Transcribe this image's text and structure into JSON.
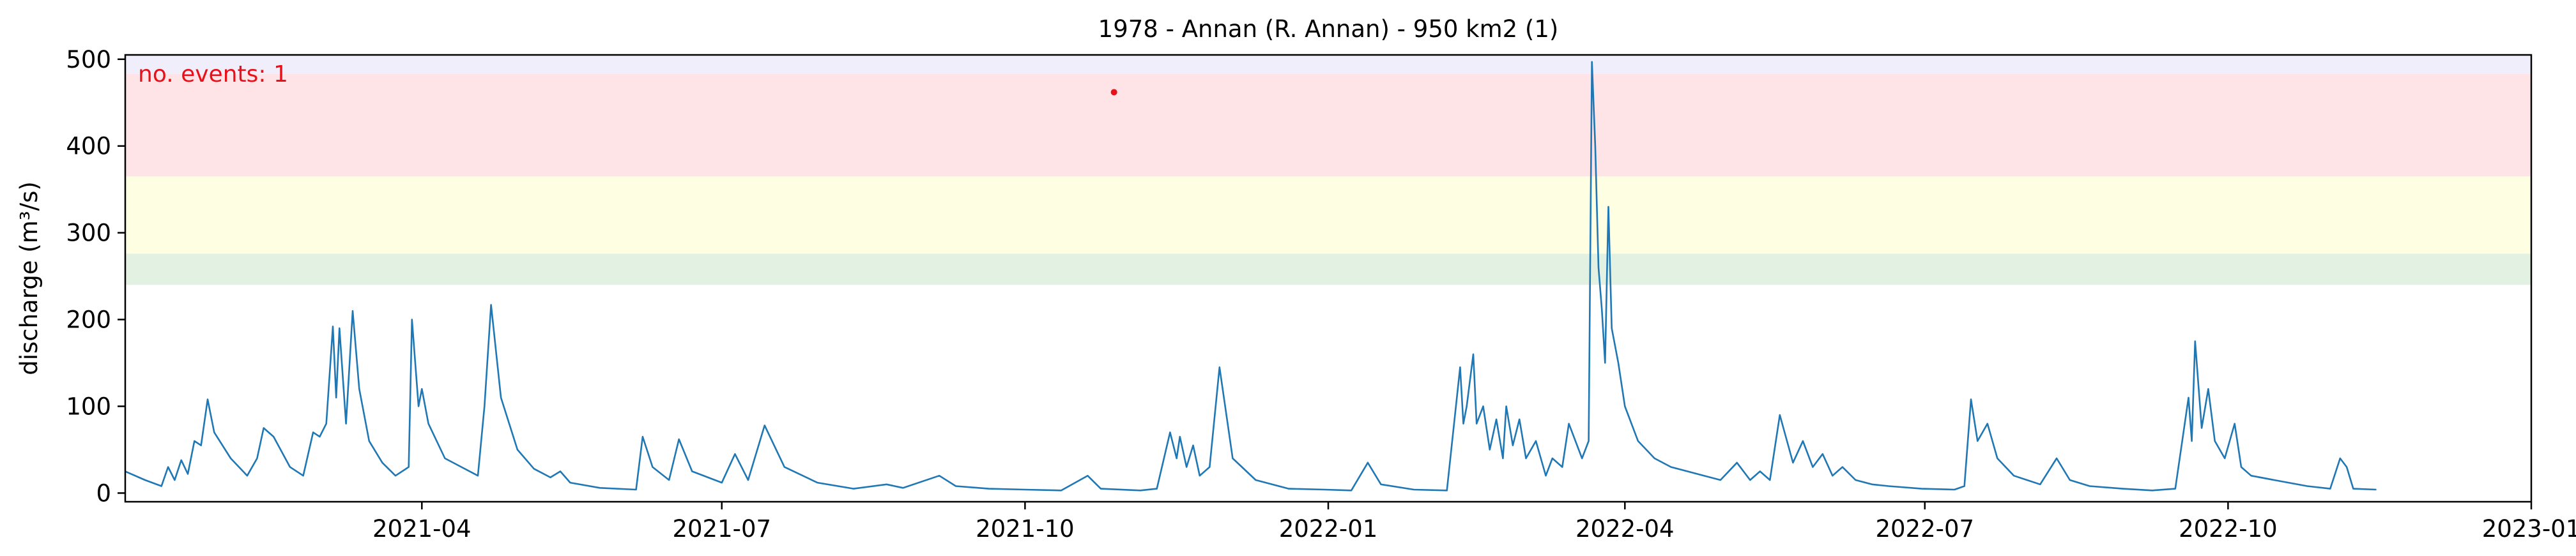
{
  "chart_data": {
    "type": "line",
    "title": "1978 - Annan (R. Annan) - 950 km2 (1)",
    "xlabel": "",
    "ylabel": "discharge (m³/s)",
    "xlim": [
      "2021-01-01",
      "2023-01-01"
    ],
    "ylim": [
      -10,
      505
    ],
    "x_ticks": [
      "2021-04",
      "2021-07",
      "2021-10",
      "2022-01",
      "2022-04",
      "2022-07",
      "2022-10",
      "2023-01"
    ],
    "y_ticks": [
      0,
      100,
      200,
      300,
      400,
      500
    ],
    "grid": false,
    "threshold_bands": [
      {
        "from": 240,
        "to": 276,
        "color": "#e3f1e3"
      },
      {
        "from": 276,
        "to": 365,
        "color": "#fefee2"
      },
      {
        "from": 365,
        "to": 483,
        "color": "#fee3e7"
      },
      {
        "from": 483,
        "to": 505,
        "color": "#f0eefa"
      }
    ],
    "annotation": "no. events: 1",
    "series": [
      {
        "color": "#1f77b4",
        "points": [
          [
            "2021-01-01",
            25
          ],
          [
            "2021-01-07",
            15
          ],
          [
            "2021-01-12",
            8
          ],
          [
            "2021-01-14",
            30
          ],
          [
            "2021-01-16",
            15
          ],
          [
            "2021-01-18",
            38
          ],
          [
            "2021-01-20",
            22
          ],
          [
            "2021-01-22",
            60
          ],
          [
            "2021-01-24",
            55
          ],
          [
            "2021-01-26",
            108
          ],
          [
            "2021-01-28",
            70
          ],
          [
            "2021-02-02",
            40
          ],
          [
            "2021-02-07",
            20
          ],
          [
            "2021-02-10",
            40
          ],
          [
            "2021-02-12",
            75
          ],
          [
            "2021-02-15",
            65
          ],
          [
            "2021-02-20",
            30
          ],
          [
            "2021-02-24",
            20
          ],
          [
            "2021-02-27",
            70
          ],
          [
            "2021-03-01",
            65
          ],
          [
            "2021-03-03",
            80
          ],
          [
            "2021-03-05",
            192
          ],
          [
            "2021-03-06",
            110
          ],
          [
            "2021-03-07",
            190
          ],
          [
            "2021-03-09",
            80
          ],
          [
            "2021-03-11",
            210
          ],
          [
            "2021-03-13",
            120
          ],
          [
            "2021-03-16",
            60
          ],
          [
            "2021-03-20",
            35
          ],
          [
            "2021-03-24",
            20
          ],
          [
            "2021-03-28",
            30
          ],
          [
            "2021-03-29",
            200
          ],
          [
            "2021-03-31",
            100
          ],
          [
            "2021-04-01",
            120
          ],
          [
            "2021-04-03",
            80
          ],
          [
            "2021-04-08",
            40
          ],
          [
            "2021-04-13",
            30
          ],
          [
            "2021-04-18",
            20
          ],
          [
            "2021-04-20",
            100
          ],
          [
            "2021-04-22",
            217
          ],
          [
            "2021-04-25",
            110
          ],
          [
            "2021-04-30",
            50
          ],
          [
            "2021-05-05",
            28
          ],
          [
            "2021-05-10",
            18
          ],
          [
            "2021-05-13",
            25
          ],
          [
            "2021-05-16",
            12
          ],
          [
            "2021-05-25",
            6
          ],
          [
            "2021-06-05",
            4
          ],
          [
            "2021-06-07",
            65
          ],
          [
            "2021-06-10",
            30
          ],
          [
            "2021-06-15",
            15
          ],
          [
            "2021-06-18",
            62
          ],
          [
            "2021-06-22",
            25
          ],
          [
            "2021-07-01",
            12
          ],
          [
            "2021-07-05",
            45
          ],
          [
            "2021-07-09",
            15
          ],
          [
            "2021-07-14",
            78
          ],
          [
            "2021-07-20",
            30
          ],
          [
            "2021-07-30",
            12
          ],
          [
            "2021-08-10",
            5
          ],
          [
            "2021-08-20",
            10
          ],
          [
            "2021-08-25",
            6
          ],
          [
            "2021-09-05",
            20
          ],
          [
            "2021-09-10",
            8
          ],
          [
            "2021-09-20",
            5
          ],
          [
            "2021-10-01",
            4
          ],
          [
            "2021-10-12",
            3
          ],
          [
            "2021-10-20",
            20
          ],
          [
            "2021-10-24",
            5
          ],
          [
            "2021-11-05",
            3
          ],
          [
            "2021-11-10",
            5
          ],
          [
            "2021-11-14",
            70
          ],
          [
            "2021-11-16",
            40
          ],
          [
            "2021-11-17",
            65
          ],
          [
            "2021-11-19",
            30
          ],
          [
            "2021-11-21",
            55
          ],
          [
            "2021-11-23",
            20
          ],
          [
            "2021-11-26",
            30
          ],
          [
            "2021-11-29",
            145
          ],
          [
            "2021-12-03",
            40
          ],
          [
            "2021-12-10",
            15
          ],
          [
            "2021-12-20",
            5
          ],
          [
            "2021-12-31",
            4
          ],
          [
            "2022-01-08",
            3
          ],
          [
            "2022-01-13",
            35
          ],
          [
            "2022-01-17",
            10
          ],
          [
            "2022-01-27",
            4
          ],
          [
            "2022-02-06",
            3
          ],
          [
            "2022-02-10",
            145
          ],
          [
            "2022-02-11",
            80
          ],
          [
            "2022-02-12",
            100
          ],
          [
            "2022-02-14",
            160
          ],
          [
            "2022-02-15",
            80
          ],
          [
            "2022-02-17",
            100
          ],
          [
            "2022-02-19",
            50
          ],
          [
            "2022-02-21",
            85
          ],
          [
            "2022-02-23",
            40
          ],
          [
            "2022-02-24",
            100
          ],
          [
            "2022-02-26",
            55
          ],
          [
            "2022-02-28",
            85
          ],
          [
            "2022-03-02",
            40
          ],
          [
            "2022-03-05",
            60
          ],
          [
            "2022-03-08",
            20
          ],
          [
            "2022-03-10",
            40
          ],
          [
            "2022-03-13",
            30
          ],
          [
            "2022-03-15",
            80
          ],
          [
            "2022-03-19",
            40
          ],
          [
            "2022-03-21",
            60
          ],
          [
            "2022-03-22",
            497
          ],
          [
            "2022-03-23",
            400
          ],
          [
            "2022-03-24",
            260
          ],
          [
            "2022-03-25",
            212
          ],
          [
            "2022-03-26",
            150
          ],
          [
            "2022-03-27",
            330
          ],
          [
            "2022-03-28",
            190
          ],
          [
            "2022-03-30",
            150
          ],
          [
            "2022-04-01",
            100
          ],
          [
            "2022-04-05",
            60
          ],
          [
            "2022-04-10",
            40
          ],
          [
            "2022-04-15",
            30
          ],
          [
            "2022-04-20",
            25
          ],
          [
            "2022-04-25",
            20
          ],
          [
            "2022-04-30",
            15
          ],
          [
            "2022-05-05",
            35
          ],
          [
            "2022-05-09",
            15
          ],
          [
            "2022-05-12",
            25
          ],
          [
            "2022-05-15",
            15
          ],
          [
            "2022-05-18",
            90
          ],
          [
            "2022-05-22",
            35
          ],
          [
            "2022-05-25",
            60
          ],
          [
            "2022-05-28",
            30
          ],
          [
            "2022-05-31",
            45
          ],
          [
            "2022-06-03",
            20
          ],
          [
            "2022-06-06",
            30
          ],
          [
            "2022-06-10",
            15
          ],
          [
            "2022-06-15",
            10
          ],
          [
            "2022-06-20",
            8
          ],
          [
            "2022-06-30",
            5
          ],
          [
            "2022-07-10",
            4
          ],
          [
            "2022-07-13",
            8
          ],
          [
            "2022-07-15",
            108
          ],
          [
            "2022-07-17",
            60
          ],
          [
            "2022-07-20",
            80
          ],
          [
            "2022-07-23",
            40
          ],
          [
            "2022-07-28",
            20
          ],
          [
            "2022-08-05",
            10
          ],
          [
            "2022-08-10",
            40
          ],
          [
            "2022-08-14",
            15
          ],
          [
            "2022-08-20",
            8
          ],
          [
            "2022-08-30",
            5
          ],
          [
            "2022-09-08",
            3
          ],
          [
            "2022-09-15",
            5
          ],
          [
            "2022-09-19",
            110
          ],
          [
            "2022-09-20",
            60
          ],
          [
            "2022-09-21",
            175
          ],
          [
            "2022-09-23",
            75
          ],
          [
            "2022-09-25",
            120
          ],
          [
            "2022-09-27",
            60
          ],
          [
            "2022-09-30",
            40
          ],
          [
            "2022-10-03",
            80
          ],
          [
            "2022-10-05",
            30
          ],
          [
            "2022-10-08",
            20
          ],
          [
            "2022-10-15",
            15
          ],
          [
            "2022-10-25",
            8
          ],
          [
            "2022-11-01",
            5
          ],
          [
            "2022-11-04",
            40
          ],
          [
            "2022-11-06",
            30
          ],
          [
            "2022-11-08",
            5
          ],
          [
            "2022-11-15",
            4
          ]
        ]
      }
    ],
    "highlight_point": {
      "x": "2021-10-28",
      "y": 462,
      "color": "#e8101a"
    }
  }
}
